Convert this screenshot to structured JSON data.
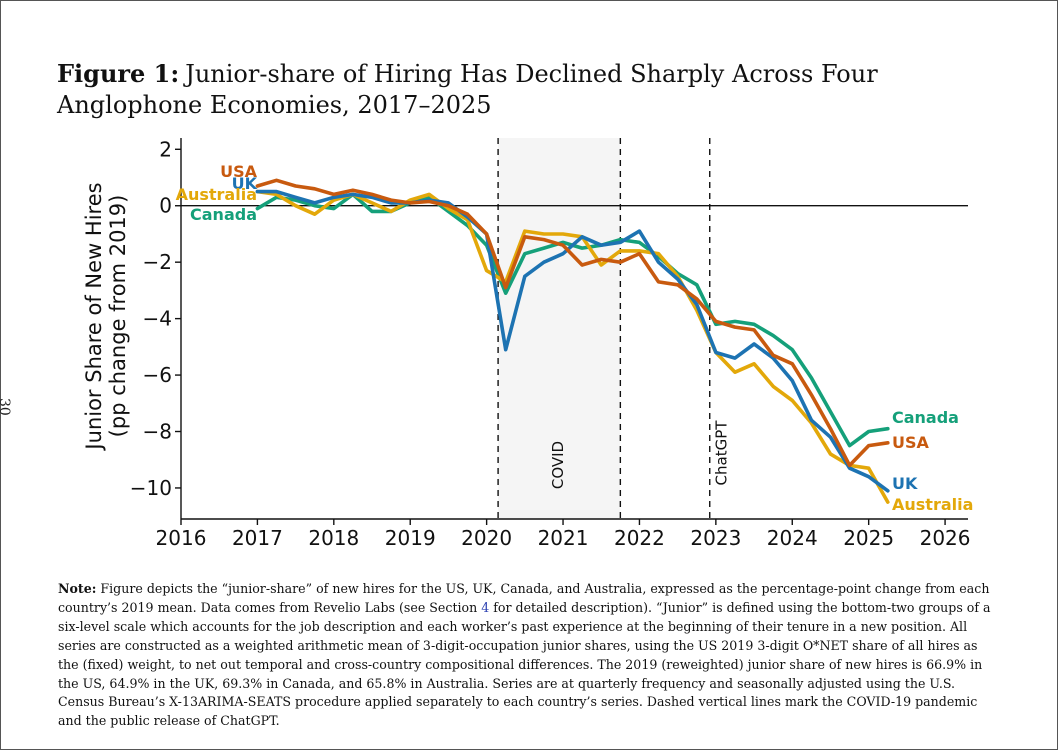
{
  "page_number": "30",
  "figure": {
    "label": "Figure 1:",
    "title": "Junior-share of Hiring Has Declined Sharply Across Four Anglophone Economies, 2017–2025"
  },
  "note": {
    "label": "Note:",
    "text_before_ref": "Figure depicts the “junior-share” of new hires for the US, UK, Canada, and Australia, expressed as the percentage-point change from each country’s 2019 mean. Data comes from Revelio Labs (see Section ",
    "ref": "4",
    "text_after_ref": " for detailed description). “Junior” is defined using the bottom-two groups of a six-level scale which accounts for the job description and each worker’s past experience at the beginning of their tenure in a new position. All series are constructed as a weighted arithmetic mean of 3-digit-occupation junior shares, using the US 2019 3-digit O*NET share of all hires as the (fixed) weight, to net out temporal and cross-country compositional differences. The 2019 (reweighted) junior share of new hires is 66.9% in the US, 64.9% in the UK, 69.3% in Canada, and 65.8% in Australia. Series are at quarterly frequency and seasonally adjusted using the U.S. Census Bureau’s X-13ARIMA-SEATS procedure applied separately to each country’s series. Dashed vertical lines mark the COVID-19 pandemic and the public release of ChatGPT."
  },
  "chart_data": {
    "type": "line",
    "ylabel": [
      "Junior Share of New Hires",
      "(pp change from 2019)"
    ],
    "xlabel": "",
    "xlim": [
      2016,
      2026.3
    ],
    "ylim": [
      -11.1,
      2.4
    ],
    "x_ticks": [
      2016,
      2017,
      2018,
      2019,
      2020,
      2021,
      2022,
      2023,
      2024,
      2025,
      2026
    ],
    "x_tick_labels": [
      "2016",
      "2017",
      "2018",
      "2019",
      "2020",
      "2021",
      "2022",
      "2023",
      "2024",
      "2025",
      "2026"
    ],
    "y_ticks": [
      2,
      0,
      -2,
      -4,
      -6,
      -8,
      -10
    ],
    "y_tick_labels": [
      "2",
      "0",
      "−2",
      "−4",
      "−6",
      "−8",
      "−10"
    ],
    "zero_line": true,
    "grid": false,
    "shaded_region": {
      "label": "COVID",
      "x0": 2020.15,
      "x1": 2021.75,
      "color": "#f5f5f5"
    },
    "vlines": [
      {
        "x": 2020.15,
        "label": ""
      },
      {
        "x": 2021.75,
        "label": ""
      },
      {
        "x": 2022.92,
        "label": "ChatGPT"
      }
    ],
    "x": [
      2017.0,
      2017.25,
      2017.5,
      2017.75,
      2018.0,
      2018.25,
      2018.5,
      2018.75,
      2019.0,
      2019.25,
      2019.5,
      2019.75,
      2020.0,
      2020.25,
      2020.5,
      2020.75,
      2021.0,
      2021.25,
      2021.5,
      2021.75,
      2022.0,
      2022.25,
      2022.5,
      2022.75,
      2023.0,
      2023.25,
      2023.5,
      2023.75,
      2024.0,
      2024.25,
      2024.5,
      2024.75,
      2025.0,
      2025.25
    ],
    "series": [
      {
        "name": "USA",
        "color": "#c85a0f",
        "values": [
          0.7,
          0.9,
          0.7,
          0.6,
          0.4,
          0.55,
          0.4,
          0.2,
          0.1,
          0.15,
          0.0,
          -0.3,
          -1.0,
          -2.9,
          -1.1,
          -1.2,
          -1.4,
          -2.1,
          -1.9,
          -2.0,
          -1.7,
          -2.7,
          -2.8,
          -3.3,
          -4.1,
          -4.3,
          -4.4,
          -5.3,
          -5.6,
          -6.7,
          -7.9,
          -9.2,
          -8.5,
          -8.4
        ]
      },
      {
        "name": "UK",
        "color": "#1d73b2",
        "values": [
          0.5,
          0.5,
          0.3,
          0.1,
          0.3,
          0.4,
          0.3,
          0.1,
          0.1,
          0.2,
          0.1,
          -0.4,
          -1.0,
          -5.1,
          -2.5,
          -2.0,
          -1.7,
          -1.1,
          -1.4,
          -1.3,
          -0.9,
          -2.0,
          -2.6,
          -3.5,
          -5.2,
          -5.4,
          -4.9,
          -5.4,
          -6.2,
          -7.6,
          -8.2,
          -9.3,
          -9.6,
          -10.1
        ]
      },
      {
        "name": "Australia",
        "color": "#e3a80a",
        "values": [
          0.5,
          0.4,
          0.0,
          -0.3,
          0.2,
          0.4,
          0.1,
          -0.2,
          0.2,
          0.4,
          -0.1,
          -0.5,
          -2.3,
          -2.7,
          -0.9,
          -1.0,
          -1.0,
          -1.1,
          -2.1,
          -1.6,
          -1.6,
          -1.7,
          -2.5,
          -3.7,
          -5.2,
          -5.9,
          -5.6,
          -6.4,
          -6.9,
          -7.7,
          -8.8,
          -9.2,
          -9.3,
          -10.5
        ]
      },
      {
        "name": "Canada",
        "color": "#15a07a",
        "values": [
          -0.1,
          0.3,
          0.2,
          0.0,
          -0.1,
          0.4,
          -0.2,
          -0.2,
          0.1,
          0.3,
          -0.2,
          -0.7,
          -1.4,
          -3.1,
          -1.7,
          -1.5,
          -1.3,
          -1.5,
          -1.4,
          -1.2,
          -1.3,
          -1.8,
          -2.4,
          -2.8,
          -4.2,
          -4.1,
          -4.2,
          -4.6,
          -5.1,
          -6.1,
          -7.3,
          -8.5,
          -8.0,
          -7.9
        ]
      }
    ]
  }
}
